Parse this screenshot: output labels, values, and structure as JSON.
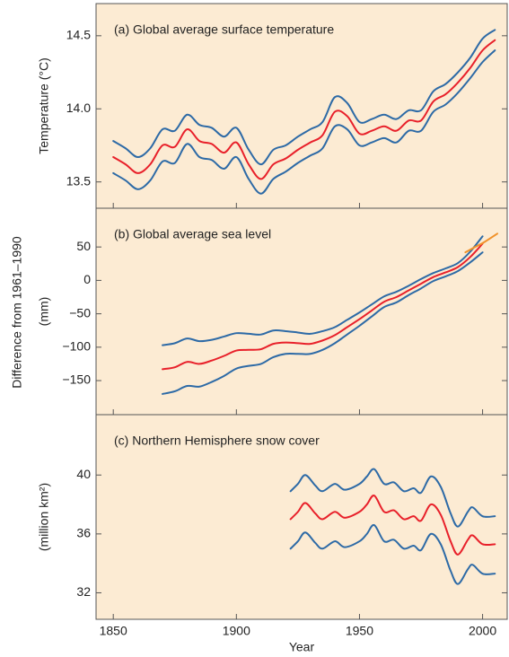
{
  "side_label": "Difference from 1961–1990",
  "chart_data": [
    {
      "type": "line",
      "title": "(a) Global average surface temperature",
      "y_label": "Temperature (°C)",
      "ylim": [
        13.32,
        14.72
      ],
      "yticks": [
        13.5,
        {
          "value": 14.0,
          "label": "14.0"
        },
        14.5
      ],
      "series": [
        {
          "color": "#2d6aa6",
          "x": [
            1850,
            1855,
            1860,
            1865,
            1870,
            1875,
            1880,
            1885,
            1890,
            1895,
            1900,
            1905,
            1910,
            1915,
            1920,
            1925,
            1930,
            1935,
            1940,
            1945,
            1950,
            1955,
            1960,
            1965,
            1970,
            1975,
            1980,
            1985,
            1990,
            1995,
            2000,
            2005
          ],
          "values": [
            13.78,
            13.73,
            13.67,
            13.73,
            13.86,
            13.85,
            13.96,
            13.89,
            13.87,
            13.81,
            13.87,
            13.72,
            13.62,
            13.72,
            13.75,
            13.81,
            13.86,
            13.91,
            14.08,
            14.04,
            13.91,
            13.93,
            13.96,
            13.93,
            13.99,
            13.99,
            14.12,
            14.17,
            14.25,
            14.35,
            14.48,
            14.54
          ]
        },
        {
          "color": "#2d6aa6",
          "x": [
            1850,
            1855,
            1860,
            1865,
            1870,
            1875,
            1880,
            1885,
            1890,
            1895,
            1900,
            1905,
            1910,
            1915,
            1920,
            1925,
            1930,
            1935,
            1940,
            1945,
            1950,
            1955,
            1960,
            1965,
            1970,
            1975,
            1980,
            1985,
            1990,
            1995,
            2000,
            2005
          ],
          "values": [
            13.56,
            13.51,
            13.45,
            13.51,
            13.64,
            13.63,
            13.76,
            13.67,
            13.65,
            13.59,
            13.67,
            13.52,
            13.42,
            13.52,
            13.57,
            13.63,
            13.68,
            13.73,
            13.88,
            13.86,
            13.75,
            13.77,
            13.8,
            13.77,
            13.85,
            13.85,
            13.98,
            14.03,
            14.11,
            14.21,
            14.32,
            14.4
          ]
        },
        {
          "color": "#e8202a",
          "x": [
            1850,
            1855,
            1860,
            1865,
            1870,
            1875,
            1880,
            1885,
            1890,
            1895,
            1900,
            1905,
            1910,
            1915,
            1920,
            1925,
            1930,
            1935,
            1940,
            1945,
            1950,
            1955,
            1960,
            1965,
            1970,
            1975,
            1980,
            1985,
            1990,
            1995,
            2000,
            2005
          ],
          "values": [
            13.67,
            13.62,
            13.56,
            13.62,
            13.75,
            13.74,
            13.86,
            13.78,
            13.76,
            13.7,
            13.77,
            13.62,
            13.52,
            13.62,
            13.66,
            13.72,
            13.77,
            13.82,
            13.98,
            13.95,
            13.83,
            13.85,
            13.88,
            13.85,
            13.92,
            13.92,
            14.05,
            14.1,
            14.18,
            14.28,
            14.4,
            14.47
          ]
        }
      ]
    },
    {
      "type": "line",
      "title": "(b) Global average sea level",
      "y_label": "(mm)",
      "ylim": [
        -201,
        108
      ],
      "yticks": [
        {
          "value": -150,
          "label": "−150"
        },
        {
          "value": -100,
          "label": "−100"
        },
        {
          "value": -50,
          "label": "−50"
        },
        0,
        50
      ],
      "series": [
        {
          "color": "#2d6aa6",
          "x": [
            1870,
            1875,
            1880,
            1885,
            1890,
            1895,
            1900,
            1905,
            1910,
            1915,
            1920,
            1925,
            1930,
            1935,
            1940,
            1945,
            1950,
            1955,
            1960,
            1965,
            1970,
            1975,
            1980,
            1985,
            1990,
            1995,
            2000
          ],
          "values": [
            -97,
            -94,
            -87,
            -91,
            -89,
            -84,
            -79,
            -80,
            -81,
            -75,
            -76,
            -78,
            -80,
            -76,
            -70,
            -59,
            -48,
            -36,
            -24,
            -17,
            -8,
            2,
            11,
            18,
            26,
            43,
            66
          ]
        },
        {
          "color": "#2d6aa6",
          "x": [
            1870,
            1875,
            1880,
            1885,
            1890,
            1895,
            1900,
            1905,
            1910,
            1915,
            1920,
            1925,
            1930,
            1935,
            1940,
            1945,
            1950,
            1955,
            1960,
            1965,
            1970,
            1975,
            1980,
            1985,
            1990,
            1995,
            2000
          ],
          "values": [
            -170,
            -166,
            -158,
            -159,
            -152,
            -143,
            -132,
            -128,
            -125,
            -115,
            -110,
            -110,
            -110,
            -104,
            -94,
            -81,
            -68,
            -54,
            -40,
            -33,
            -22,
            -12,
            -1,
            6,
            14,
            27,
            42
          ]
        },
        {
          "color": "#e8202a",
          "x": [
            1870,
            1875,
            1880,
            1885,
            1890,
            1895,
            1900,
            1905,
            1910,
            1915,
            1920,
            1925,
            1930,
            1935,
            1940,
            1945,
            1950,
            1955,
            1960,
            1965,
            1970,
            1975,
            1980,
            1985,
            1990,
            1995,
            2000
          ],
          "values": [
            -133,
            -130,
            -122,
            -125,
            -120,
            -113,
            -105,
            -104,
            -103,
            -95,
            -93,
            -94,
            -95,
            -90,
            -82,
            -70,
            -58,
            -45,
            -32,
            -25,
            -15,
            -5,
            5,
            12,
            20,
            35,
            55
          ]
        },
        {
          "color": "#f0922a",
          "x": [
            1993,
            1997,
            2001,
            2006
          ],
          "values": [
            42,
            50,
            58,
            70
          ]
        }
      ]
    },
    {
      "type": "line",
      "title": "(c) Northern Hemisphere snow cover",
      "y_label": "(million km²)",
      "x_label": "Year",
      "ylim": [
        30.2,
        44.1
      ],
      "yticks": [
        32,
        36,
        40
      ],
      "xlim": [
        1843,
        2010
      ],
      "xticks": [
        1850,
        1900,
        1950,
        2000
      ],
      "series": [
        {
          "color": "#2d6aa6",
          "x": [
            1922,
            1925,
            1928,
            1932,
            1935,
            1940,
            1944,
            1950,
            1953,
            1956,
            1960,
            1964,
            1968,
            1972,
            1975,
            1979,
            1983,
            1987,
            1990,
            1994,
            1996,
            2000,
            2005
          ],
          "values": [
            38.9,
            39.4,
            40.0,
            39.3,
            38.9,
            39.4,
            39.0,
            39.4,
            39.9,
            40.4,
            39.4,
            39.5,
            38.9,
            39.1,
            38.8,
            39.9,
            39.2,
            37.4,
            36.5,
            37.5,
            37.8,
            37.2,
            37.2
          ]
        },
        {
          "color": "#2d6aa6",
          "x": [
            1922,
            1925,
            1928,
            1932,
            1935,
            1940,
            1944,
            1950,
            1953,
            1956,
            1960,
            1964,
            1968,
            1972,
            1975,
            1979,
            1983,
            1987,
            1990,
            1994,
            1996,
            2000,
            2005
          ],
          "values": [
            35.0,
            35.5,
            36.1,
            35.4,
            35.0,
            35.5,
            35.1,
            35.5,
            36.0,
            36.6,
            35.5,
            35.6,
            35.0,
            35.2,
            34.9,
            36.0,
            35.3,
            33.5,
            32.6,
            33.6,
            33.9,
            33.3,
            33.3
          ]
        },
        {
          "color": "#e8202a",
          "x": [
            1922,
            1925,
            1928,
            1932,
            1935,
            1940,
            1944,
            1950,
            1953,
            1956,
            1960,
            1964,
            1968,
            1972,
            1975,
            1979,
            1983,
            1987,
            1990,
            1994,
            1996,
            2000,
            2005
          ],
          "values": [
            37.0,
            37.5,
            38.1,
            37.4,
            37.0,
            37.5,
            37.1,
            37.5,
            38.0,
            38.6,
            37.5,
            37.6,
            37.0,
            37.2,
            36.9,
            38.0,
            37.3,
            35.5,
            34.6,
            35.6,
            35.9,
            35.3,
            35.3
          ]
        }
      ]
    }
  ]
}
